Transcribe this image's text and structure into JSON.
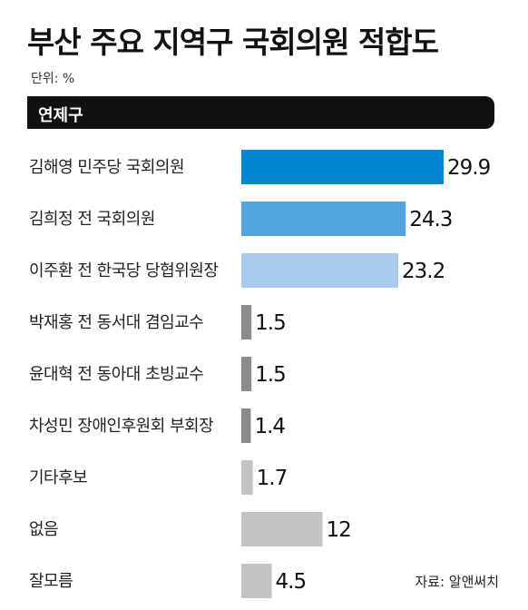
{
  "title": "부산 주요 지역구 국회의원 적합도",
  "unit": "단위: %",
  "section": "연제구",
  "source": "자료: 알앤써치",
  "chart_data": {
    "type": "bar",
    "orientation": "horizontal",
    "categories": [
      "김해영 민주당 국회의원",
      "김희정 전 국회의원",
      "이주환 전 한국당 당협위원장",
      "박재홍 전 동서대 겸임교수",
      "윤대혁 전 동아대 초빙교수",
      "차성민 장애인후원회 부회장",
      "기타후보",
      "없음",
      "잘모름"
    ],
    "values": [
      29.9,
      24.3,
      23.2,
      1.5,
      1.5,
      1.4,
      1.7,
      12,
      4.5
    ],
    "value_labels": [
      "29.9",
      "24.3",
      "23.2",
      "1.5",
      "1.5",
      "1.4",
      "1.7",
      "12",
      "4.5"
    ],
    "colors": [
      "#0286d0",
      "#4fa6df",
      "#a7cbec",
      "#8a8a8a",
      "#8a8a8a",
      "#8a8a8a",
      "#c3c3c3",
      "#c3c3c3",
      "#c3c3c3"
    ]
  }
}
